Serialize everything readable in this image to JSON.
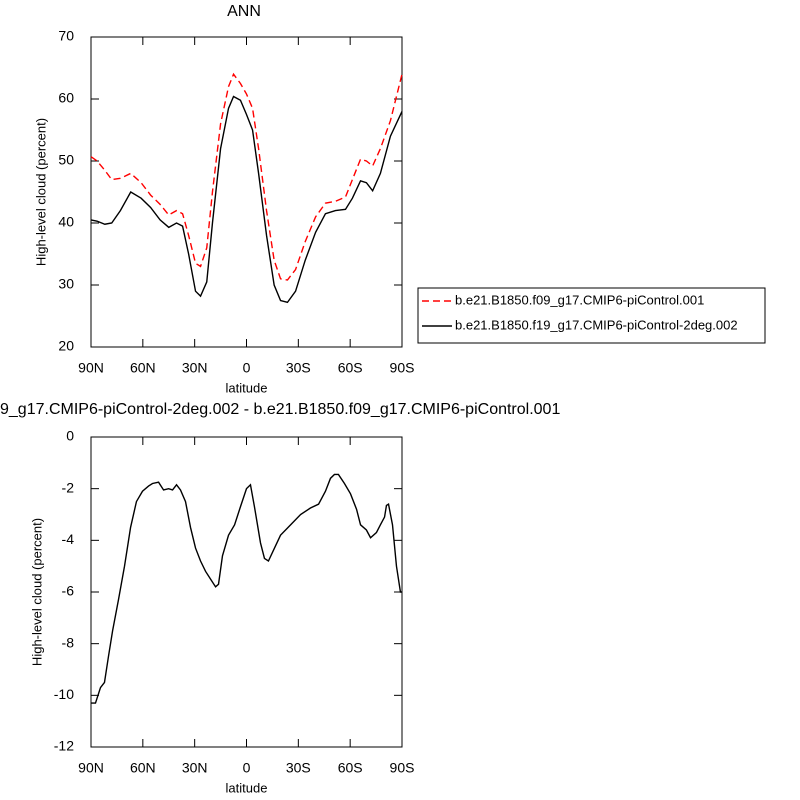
{
  "chart_data": [
    {
      "type": "line",
      "title": "ANN",
      "x_label": "latitude",
      "y_label": "High-level cloud (percent)",
      "x": [
        90,
        86.5,
        82,
        78,
        73,
        67,
        61,
        55.5,
        50,
        45,
        40.5,
        37,
        33.5,
        29.5,
        26.6,
        23,
        19.7,
        15,
        10.4,
        7.5,
        3.5,
        0,
        -3.5,
        -7,
        -11.6,
        -16,
        -19.7,
        -23.7,
        -28.4,
        -34,
        -40,
        -45.7,
        -51.5,
        -57.3,
        -61.3,
        -66,
        -69.4,
        -73,
        -77.5,
        -83.3,
        -90
      ],
      "series": [
        {
          "name": "b.e21.B1850.f09_g17.CMIP6-piControl.001",
          "color": "#ff0000",
          "dash": "dashed",
          "values": [
            50.7,
            50,
            48.5,
            47,
            47.2,
            48,
            46.5,
            44.5,
            43,
            41.3,
            42,
            41.5,
            38,
            33.5,
            33,
            36,
            45,
            56,
            62,
            64,
            62.5,
            60.8,
            58.5,
            52,
            42,
            34,
            31,
            30.8,
            32.5,
            37,
            41,
            43.2,
            43.5,
            44.2,
            47,
            50.3,
            50,
            49.2,
            52,
            56.5,
            64
          ]
        },
        {
          "name": "b.e21.B1850.f19_g17.CMIP6-piControl-2deg.002",
          "color": "#000000",
          "dash": "solid",
          "values": [
            40.5,
            40.3,
            39.8,
            40,
            42,
            45,
            44,
            42.5,
            40.5,
            39.3,
            40,
            39.5,
            35,
            29,
            28.2,
            30.5,
            40,
            52,
            58.5,
            60.4,
            59.8,
            57.5,
            55,
            48,
            38,
            30,
            27.5,
            27.2,
            29,
            34,
            38.5,
            41.5,
            42,
            42.2,
            44,
            46.8,
            46.5,
            45.2,
            48,
            54,
            58
          ]
        }
      ],
      "xlim": [
        90,
        -90
      ],
      "xticks": [
        {
          "value": 90,
          "label": "90N"
        },
        {
          "value": 60,
          "label": "60N"
        },
        {
          "value": 30,
          "label": "30N"
        },
        0,
        {
          "value": -30,
          "label": "30S"
        },
        {
          "value": -60,
          "label": "60S"
        },
        {
          "value": -90,
          "label": "90S"
        }
      ],
      "ylim": [
        20,
        70
      ],
      "yticks": [
        20,
        30,
        40,
        50,
        60,
        70
      ],
      "legend": "right"
    },
    {
      "type": "line",
      "title": "9_g17.CMIP6-piControl-2deg.002 - b.e21.B1850.f09_g17.CMIP6-piControl.001",
      "x_label": "latitude",
      "y_label": "High-level cloud (percent)",
      "x": [
        90,
        87.4,
        84.5,
        82.2,
        79.9,
        77.5,
        74.1,
        70.6,
        67.1,
        63.7,
        60.2,
        56.7,
        54.4,
        50.9,
        48,
        45.1,
        42.8,
        40.5,
        38.2,
        35.3,
        32.4,
        29.5,
        26.6,
        23.7,
        20.8,
        17.9,
        16.2,
        13.9,
        10.4,
        6.9,
        3.5,
        0,
        -2.3,
        -4.6,
        -8.1,
        -10.4,
        -12.7,
        -16.2,
        -19.7,
        -25.5,
        -31.3,
        -37,
        -41.7,
        -45.7,
        -48.6,
        -50.9,
        -53.2,
        -56.7,
        -60.2,
        -63.7,
        -66,
        -69.4,
        -71.8,
        -75.2,
        -77.5,
        -79.9,
        -81,
        -82.2,
        -84.5,
        -86.8,
        -89.1,
        -90
      ],
      "series": [
        {
          "color": "#000000",
          "dash": "solid",
          "values": [
            -10.3,
            -10.3,
            -9.7,
            -9.5,
            -8.5,
            -7.5,
            -6.3,
            -5,
            -3.5,
            -2.5,
            -2.1,
            -1.9,
            -1.8,
            -1.75,
            -2.05,
            -2,
            -2.05,
            -1.85,
            -2.05,
            -2.5,
            -3.5,
            -4.3,
            -4.8,
            -5.2,
            -5.5,
            -5.8,
            -5.7,
            -4.6,
            -3.8,
            -3.4,
            -2.7,
            -2,
            -1.85,
            -2.7,
            -4.1,
            -4.7,
            -4.8,
            -4.3,
            -3.8,
            -3.4,
            -3,
            -2.75,
            -2.6,
            -2.1,
            -1.6,
            -1.45,
            -1.45,
            -1.8,
            -2.2,
            -2.8,
            -3.4,
            -3.6,
            -3.9,
            -3.7,
            -3.4,
            -3.1,
            -2.65,
            -2.6,
            -3.4,
            -5,
            -6,
            -6
          ]
        }
      ],
      "xlim": [
        90,
        -90
      ],
      "xticks": [
        {
          "value": 90,
          "label": "90N"
        },
        {
          "value": 60,
          "label": "60N"
        },
        {
          "value": 30,
          "label": "30N"
        },
        0,
        {
          "value": -30,
          "label": "30S"
        },
        {
          "value": -60,
          "label": "60S"
        },
        {
          "value": -90,
          "label": "90S"
        }
      ],
      "ylim": [
        -12,
        0
      ],
      "yticks": [
        -12,
        -10,
        -8,
        -6,
        -4,
        -2,
        0
      ]
    }
  ]
}
